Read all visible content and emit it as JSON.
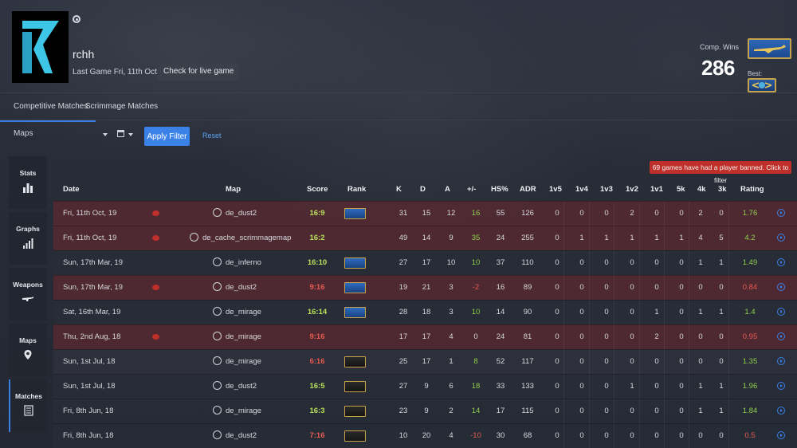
{
  "profile": {
    "name": "rchh",
    "last_game": "Last Game Fri, 11th Oct, 19",
    "live_button": "Check for live game",
    "comp_wins_label": "Comp. Wins",
    "comp_wins": "286",
    "best_label": "Best:"
  },
  "tabs": [
    {
      "label": "Competitive Matches",
      "active": true
    },
    {
      "label": "Scrimmage Matches",
      "active": false
    }
  ],
  "filters": {
    "maps_label": "Maps",
    "apply_label": "Apply Filter",
    "reset_label": "Reset"
  },
  "notice": "69 games have had a player banned. Click to filter",
  "sidebar": [
    {
      "label": "Stats",
      "icon": "bar-chart-icon"
    },
    {
      "label": "Graphs",
      "icon": "signal-bars-icon"
    },
    {
      "label": "Weapons",
      "icon": "rifle-icon"
    },
    {
      "label": "Maps",
      "icon": "map-pin-icon"
    },
    {
      "label": "Matches",
      "icon": "list-icon",
      "active": true
    }
  ],
  "columns": [
    "Date",
    "Map",
    "Score",
    "Rank",
    "K",
    "D",
    "A",
    "+/-",
    "HS%",
    "ADR",
    "1v5",
    "1v4",
    "1v3",
    "1v2",
    "1v1",
    "5k",
    "4k",
    "3k",
    "Rating"
  ],
  "colors": {
    "accent": "#3b82e8",
    "loss_row": "#68282e",
    "positive": "#8fcf4a",
    "negative": "#e65a50",
    "banned": "#c0302a"
  },
  "matches": [
    {
      "date": "Fri, 11th Oct, 19",
      "vac": true,
      "map": "de_dust2",
      "map_icon": "dust2-icon",
      "score": "16:9",
      "result": "win",
      "row": "loss",
      "rank": "blue",
      "k": "31",
      "d": "15",
      "a": "12",
      "pm": "16",
      "hs": "55",
      "adr": "126",
      "v5": "0",
      "v4": "0",
      "v3": "0",
      "v2": "2",
      "v1": "0",
      "k5": "0",
      "k4": "2",
      "k3": "0",
      "rating": "1.76"
    },
    {
      "date": "Fri, 11th Oct, 19",
      "vac": true,
      "map": "de_cache_scrimmagemap",
      "map_icon": "cache-icon",
      "score": "16:2",
      "result": "win",
      "row": "loss",
      "rank": "none",
      "k": "49",
      "d": "14",
      "a": "9",
      "pm": "35",
      "hs": "24",
      "adr": "255",
      "v5": "0",
      "v4": "1",
      "v3": "1",
      "v2": "1",
      "v1": "1",
      "k5": "1",
      "k4": "4",
      "k3": "5",
      "rating": "4.2"
    },
    {
      "date": "Sun, 17th Mar, 19",
      "vac": false,
      "map": "de_inferno",
      "map_icon": "inferno-icon",
      "score": "16:10",
      "result": "win",
      "row": "win",
      "rank": "blue",
      "k": "27",
      "d": "17",
      "a": "10",
      "pm": "10",
      "hs": "37",
      "adr": "110",
      "v5": "0",
      "v4": "0",
      "v3": "0",
      "v2": "0",
      "v1": "0",
      "k5": "0",
      "k4": "1",
      "k3": "1",
      "rating": "1.49"
    },
    {
      "date": "Sun, 17th Mar, 19",
      "vac": true,
      "map": "de_dust2",
      "map_icon": "dust2-icon",
      "score": "9:16",
      "result": "loss",
      "row": "loss",
      "rank": "blue",
      "k": "19",
      "d": "21",
      "a": "3",
      "pm": "-2",
      "hs": "16",
      "adr": "89",
      "v5": "0",
      "v4": "0",
      "v3": "0",
      "v2": "0",
      "v1": "0",
      "k5": "0",
      "k4": "0",
      "k3": "0",
      "rating": "0.84"
    },
    {
      "date": "Sat, 16th Mar, 19",
      "vac": false,
      "map": "de_mirage",
      "map_icon": "mirage-icon",
      "score": "16:14",
      "result": "win",
      "row": "win",
      "rank": "blue",
      "k": "28",
      "d": "18",
      "a": "3",
      "pm": "10",
      "hs": "14",
      "adr": "90",
      "v5": "0",
      "v4": "0",
      "v3": "0",
      "v2": "0",
      "v1": "1",
      "k5": "0",
      "k4": "1",
      "k3": "1",
      "rating": "1.4"
    },
    {
      "date": "Thu, 2nd Aug, 18",
      "vac": true,
      "map": "de_mirage",
      "map_icon": "mirage-icon",
      "score": "9:16",
      "result": "loss",
      "row": "loss",
      "rank": "none",
      "k": "17",
      "d": "17",
      "a": "4",
      "pm": "0",
      "hs": "24",
      "adr": "81",
      "v5": "0",
      "v4": "0",
      "v3": "0",
      "v2": "0",
      "v1": "2",
      "k5": "0",
      "k4": "0",
      "k3": "0",
      "rating": "0.95"
    },
    {
      "date": "Sun, 1st Jul, 18",
      "vac": false,
      "map": "de_mirage",
      "map_icon": "mirage-icon",
      "score": "6:16",
      "result": "loss",
      "row": "draw",
      "rank": "gold",
      "k": "25",
      "d": "17",
      "a": "1",
      "pm": "8",
      "hs": "52",
      "adr": "117",
      "v5": "0",
      "v4": "0",
      "v3": "0",
      "v2": "0",
      "v1": "0",
      "k5": "0",
      "k4": "0",
      "k3": "0",
      "rating": "1.35"
    },
    {
      "date": "Sun, 1st Jul, 18",
      "vac": false,
      "map": "de_dust2",
      "map_icon": "dust2-icon",
      "score": "16:5",
      "result": "win",
      "row": "win",
      "rank": "gold",
      "k": "27",
      "d": "9",
      "a": "6",
      "pm": "18",
      "hs": "33",
      "adr": "133",
      "v5": "0",
      "v4": "0",
      "v3": "0",
      "v2": "1",
      "v1": "0",
      "k5": "0",
      "k4": "1",
      "k3": "1",
      "rating": "1.96"
    },
    {
      "date": "Fri, 8th Jun, 18",
      "vac": false,
      "map": "de_mirage",
      "map_icon": "mirage-icon",
      "score": "16:3",
      "result": "win",
      "row": "win",
      "rank": "gold",
      "k": "23",
      "d": "9",
      "a": "2",
      "pm": "14",
      "hs": "17",
      "adr": "115",
      "v5": "0",
      "v4": "0",
      "v3": "0",
      "v2": "0",
      "v1": "0",
      "k5": "0",
      "k4": "1",
      "k3": "1",
      "rating": "1.84"
    },
    {
      "date": "Fri, 8th Jun, 18",
      "vac": false,
      "map": "de_dust2",
      "map_icon": "dust2-icon",
      "score": "7:16",
      "result": "loss",
      "row": "win",
      "rank": "gold",
      "k": "10",
      "d": "20",
      "a": "4",
      "pm": "-10",
      "hs": "30",
      "adr": "68",
      "v5": "0",
      "v4": "0",
      "v3": "0",
      "v2": "0",
      "v1": "0",
      "k5": "0",
      "k4": "0",
      "k3": "0",
      "rating": "0.5"
    }
  ]
}
